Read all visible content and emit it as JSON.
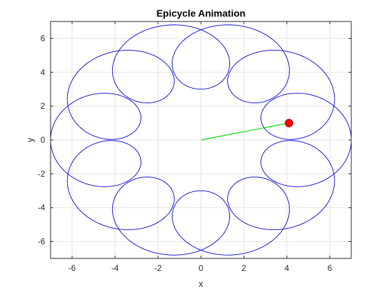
{
  "chart_data": {
    "type": "line",
    "title": "Epicycle Animation",
    "xlabel": "x",
    "ylabel": "y",
    "xlim": [
      -7,
      7
    ],
    "ylim": [
      -7,
      7
    ],
    "xticks": [
      -6,
      -4,
      -2,
      0,
      2,
      4,
      6
    ],
    "yticks": [
      -6,
      -4,
      -2,
      0,
      2,
      4,
      6
    ],
    "xtick_labels": [
      "-6",
      "-4",
      "-2",
      "0",
      "2",
      "4",
      "6"
    ],
    "ytick_labels": [
      "-6",
      "-4",
      "-2",
      "0",
      "2",
      "4",
      "6"
    ],
    "grid": true,
    "epicycle": {
      "deferent_radius": 5.0,
      "epicycle_radius": 2.0,
      "epicycle_frequency_ratio": 11,
      "theta_range_turns": [
        0,
        1
      ]
    },
    "series": [
      {
        "kind": "trace",
        "color": "#0000cc"
      },
      {
        "kind": "arm",
        "x": [
          0,
          4.1
        ],
        "y": [
          0,
          1.0
        ],
        "color": "#00dd00"
      },
      {
        "kind": "point",
        "x": [
          4.1
        ],
        "y": [
          1.0
        ],
        "color": "#ff0000"
      }
    ]
  }
}
